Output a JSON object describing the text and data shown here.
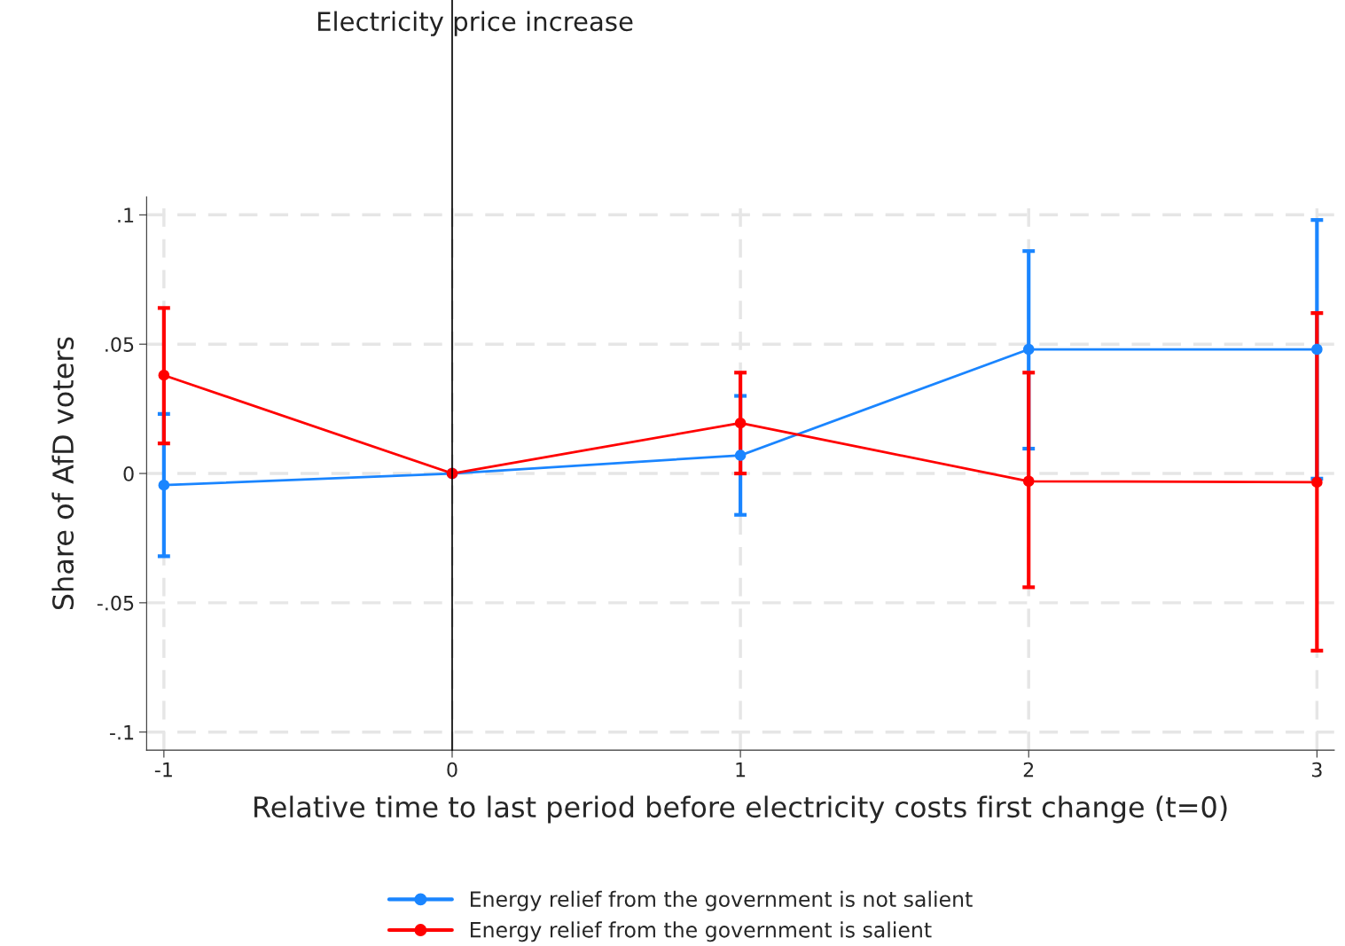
{
  "chart_data": {
    "type": "line",
    "title": "Electricity price increase",
    "xlabel": "Relative time to last period before electricity costs first change (t=0)",
    "ylabel": "Share of AfD voters",
    "x": [
      -1,
      0,
      1,
      2,
      3
    ],
    "series": [
      {
        "name": "Energy relief from the government is not salient",
        "color": "#1a85ff",
        "values": [
          -0.0045,
          0,
          0.007,
          0.048,
          0.048
        ],
        "errors": [
          [
            -0.032,
            0.023
          ],
          null,
          [
            -0.016,
            0.03
          ],
          [
            0.0096,
            0.086
          ],
          [
            -0.002,
            0.098
          ]
        ]
      },
      {
        "name": "Energy relief from the government is salient",
        "color": "#ff0000",
        "values": [
          0.038,
          0,
          0.0195,
          -0.003,
          -0.0034
        ],
        "errors": [
          [
            0.0116,
            0.064
          ],
          null,
          [
            0,
            0.039
          ],
          [
            -0.044,
            0.039
          ],
          [
            -0.0685,
            0.062
          ]
        ]
      }
    ],
    "xlim": [
      -1.06,
      3.06
    ],
    "ylim": [
      -0.107,
      0.107
    ],
    "xticks": [
      -1,
      0,
      1,
      2,
      3
    ],
    "yticks": [
      {
        "value": -0.1,
        "label": "-.1"
      },
      {
        "value": -0.05,
        "label": "-.05"
      },
      {
        "value": 0,
        "label": "0"
      },
      {
        "value": 0.05,
        "label": ".05"
      },
      {
        "value": 0.1,
        "label": ".1"
      }
    ],
    "ref_lines": [
      {
        "axis": "x",
        "value": 0,
        "color": "#000000"
      }
    ],
    "grid": true,
    "legend": "bottom",
    "marker": "circle",
    "line_style": "solid"
  }
}
